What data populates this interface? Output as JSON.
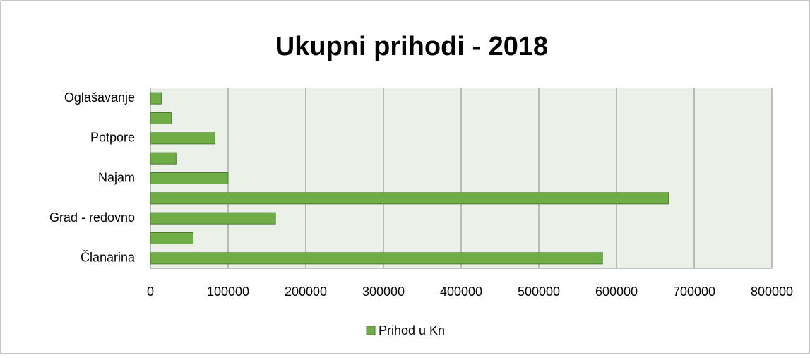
{
  "chart_data": {
    "type": "bar",
    "orientation": "horizontal",
    "title": "Ukupni prihodi - 2018",
    "categories": [
      "Članarina",
      null,
      "Grad - redovno",
      null,
      "Najam",
      null,
      "Potpore",
      null,
      "Oglašavanje"
    ],
    "series": [
      {
        "name": "Prihod u Kn",
        "color": "#70ad47",
        "values": [
          582000,
          55000,
          161000,
          667000,
          100000,
          33000,
          83000,
          27000,
          14000
        ]
      }
    ],
    "xlim": [
      0,
      800000
    ],
    "xticks": [
      0,
      100000,
      200000,
      300000,
      400000,
      500000,
      600000,
      700000,
      800000
    ],
    "grid": true,
    "legend": "bottom"
  }
}
